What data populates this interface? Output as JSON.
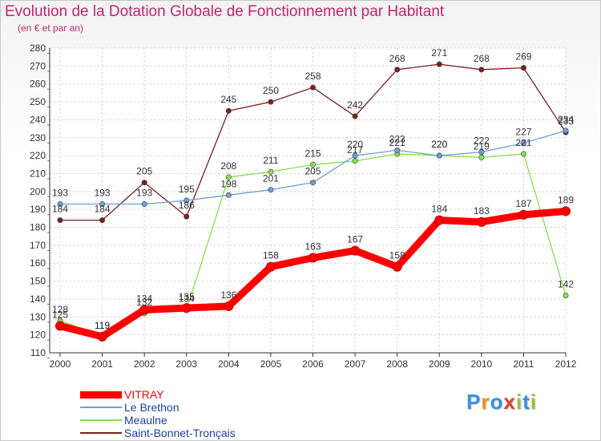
{
  "title": "Evolution de la Dotation Globale de Fonctionnement par Habitant",
  "subtitle": "(en € et par an)",
  "chart_data": {
    "type": "line",
    "title": "Evolution de la Dotation Globale de Fonctionnement par Habitant",
    "subtitle": "(en € et par an)",
    "xlabel": "",
    "ylabel": "",
    "ylim": [
      110,
      280
    ],
    "ytick_step": 10,
    "grid": true,
    "categories": [
      "2000",
      "2001",
      "2002",
      "2003",
      "2004",
      "2005",
      "2006",
      "2007",
      "2008",
      "2009",
      "2010",
      "2011",
      "2012"
    ],
    "series": [
      {
        "name": "VITRAY",
        "color": "#ff0000",
        "values": [
          125,
          119,
          134,
          135,
          136,
          158,
          163,
          167,
          158,
          184,
          183,
          187,
          189
        ]
      },
      {
        "name": "Le Brethon",
        "color": "#6aa0d8",
        "values": [
          193,
          193,
          193,
          195,
          198,
          201,
          205,
          220,
          223,
          220,
          222,
          227,
          234
        ]
      },
      {
        "name": "Meaulne",
        "color": "#86e04a",
        "values": [
          128,
          119,
          132,
          134,
          208,
          211,
          215,
          217,
          221,
          220,
          219,
          221,
          142
        ]
      },
      {
        "name": "Saint-Bonnet-Tronçais",
        "color": "#7a2020",
        "values": [
          184,
          184,
          205,
          186,
          245,
          250,
          258,
          242,
          268,
          271,
          268,
          269,
          233
        ]
      }
    ],
    "legend": "bottom-left"
  },
  "logo": {
    "letters": [
      "P",
      "r",
      "o",
      "x",
      "i",
      "t",
      "i"
    ],
    "colors": [
      "#3a8ee6",
      "#f08c1e",
      "#3a8ee6",
      "#e43a2a",
      "#8cc63f",
      "#3a8ee6",
      "#8cc63f"
    ]
  }
}
